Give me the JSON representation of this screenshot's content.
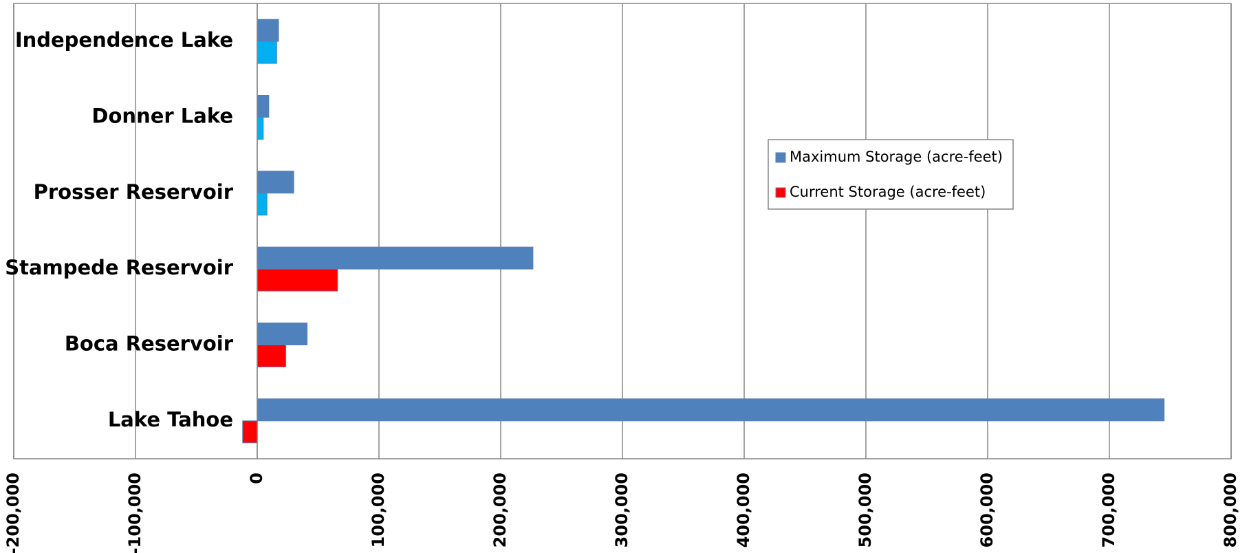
{
  "chart_data": {
    "type": "hbar",
    "categories": [
      "Lake Tahoe",
      "Boca Reservoir",
      "Stampede Reservoir",
      "Prosser Reservoir",
      "Donner Lake",
      "Independence Lake"
    ],
    "series": [
      {
        "name": "Maximum Storage (acre-feet)",
        "color": "#4f81bd",
        "values": [
          745000,
          41000,
          226500,
          30000,
          9500,
          17500
        ]
      },
      {
        "name": "Current Storage (acre-feet)",
        "color": "#ff0000",
        "colors": [
          "#ff0000",
          "#ff0000",
          "#ff0000",
          "#00b0f0",
          "#00b0f0",
          "#00b0f0"
        ],
        "values": [
          -12000,
          23500,
          66000,
          8000,
          5000,
          16000
        ]
      }
    ],
    "xlim": [
      -200000,
      800000
    ],
    "xticks": [
      {
        "value": -200000,
        "label": "-200,000"
      },
      {
        "value": -100000,
        "label": "-100,000"
      },
      0,
      {
        "value": 100000,
        "label": "100,000"
      },
      {
        "value": 200000,
        "label": "200,000"
      },
      {
        "value": 300000,
        "label": "300,000"
      },
      {
        "value": 400000,
        "label": "400,000"
      },
      {
        "value": 500000,
        "label": "500,000"
      },
      {
        "value": 600000,
        "label": "600,000"
      },
      {
        "value": 700000,
        "label": "700,000"
      },
      {
        "value": 800000,
        "label": "800,000"
      }
    ],
    "grid": true,
    "legend": "right"
  }
}
